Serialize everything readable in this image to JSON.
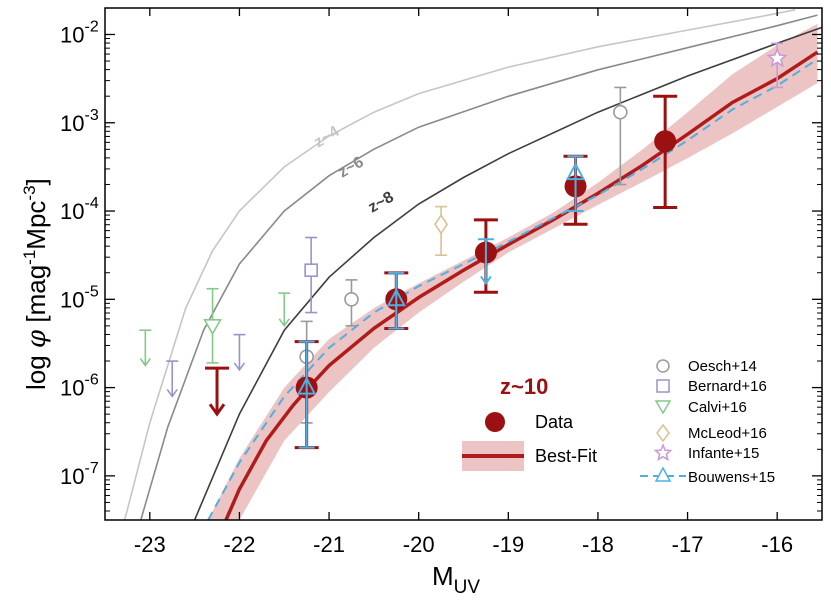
{
  "chart_data": {
    "type": "scatter",
    "title": "",
    "xlabel": "M",
    "xlabel_sub": "UV",
    "ylabel_prefix": "log ",
    "ylabel_phi": "φ",
    "ylabel_unit": "[mag",
    "ylabel_exp1": "-1",
    "ylabel_mid": "Mpc",
    "ylabel_exp2": "-3",
    "ylabel_end": "]",
    "xlim": [
      -23.5,
      -15.5
    ],
    "ylim_log10": [
      -7.5,
      -1.7
    ],
    "x_ticks": [
      -23,
      -22,
      -21,
      -20,
      -19,
      -18,
      -17,
      -16
    ],
    "y_ticks_exponent": [
      -7,
      -6,
      -5,
      -4,
      -3,
      -2
    ],
    "y_tick_base": "10",
    "colors": {
      "data": "#9b1111",
      "bestfit": "#b01c1c",
      "band": "#ecc4c4",
      "bouwens": "#4eb0e2",
      "oesch": "#9a9a9a",
      "bernard": "#9a92cc",
      "calvi": "#86c98a",
      "mcleod": "#d6c392",
      "infante": "#c99ad8",
      "z4": "#c6c6c6",
      "z6": "#8a8a8a",
      "z8": "#3e3e3e"
    },
    "reference_curves": [
      {
        "name": "z~4",
        "label": "z~4",
        "points": [
          [
            -23.28,
            -7.5
          ],
          [
            -23.0,
            -6.4
          ],
          [
            -22.6,
            -5.1
          ],
          [
            -22.3,
            -4.45
          ],
          [
            -22.0,
            -4.0
          ],
          [
            -21.5,
            -3.5
          ],
          [
            -21.0,
            -3.15
          ],
          [
            -20.5,
            -2.88
          ],
          [
            -20.0,
            -2.67
          ],
          [
            -19.0,
            -2.37
          ],
          [
            -18.0,
            -2.14
          ],
          [
            -17.0,
            -1.95
          ],
          [
            -16.2,
            -1.8
          ],
          [
            -15.8,
            -1.72
          ]
        ]
      },
      {
        "name": "z~6",
        "label": "z~6",
        "points": [
          [
            -23.1,
            -7.5
          ],
          [
            -22.8,
            -6.45
          ],
          [
            -22.4,
            -5.35
          ],
          [
            -22.0,
            -4.6
          ],
          [
            -21.5,
            -4.0
          ],
          [
            -21.0,
            -3.6
          ],
          [
            -20.5,
            -3.3
          ],
          [
            -20.0,
            -3.05
          ],
          [
            -19.0,
            -2.7
          ],
          [
            -18.0,
            -2.4
          ],
          [
            -17.0,
            -2.15
          ],
          [
            -16.0,
            -1.9
          ],
          [
            -15.55,
            -1.78
          ]
        ]
      },
      {
        "name": "z~8",
        "label": "z~8",
        "points": [
          [
            -22.5,
            -7.5
          ],
          [
            -22.0,
            -6.3
          ],
          [
            -21.5,
            -5.35
          ],
          [
            -21.0,
            -4.75
          ],
          [
            -20.5,
            -4.3
          ],
          [
            -20.0,
            -3.92
          ],
          [
            -19.5,
            -3.62
          ],
          [
            -19.0,
            -3.35
          ],
          [
            -18.0,
            -2.88
          ],
          [
            -17.0,
            -2.47
          ],
          [
            -16.0,
            -2.1
          ],
          [
            -15.5,
            -1.92
          ]
        ]
      }
    ],
    "best_fit": {
      "name": "Best-Fit",
      "points": [
        [
          -22.15,
          -7.5
        ],
        [
          -22.0,
          -7.15
        ],
        [
          -21.7,
          -6.6
        ],
        [
          -21.4,
          -6.2
        ],
        [
          -21.2,
          -5.97
        ],
        [
          -21.0,
          -5.75
        ],
        [
          -20.5,
          -5.33
        ],
        [
          -20.0,
          -4.98
        ],
        [
          -19.5,
          -4.67
        ],
        [
          -19.0,
          -4.38
        ],
        [
          -18.5,
          -4.1
        ],
        [
          -18.0,
          -3.8
        ],
        [
          -17.5,
          -3.48
        ],
        [
          -17.0,
          -3.13
        ],
        [
          -16.5,
          -2.77
        ],
        [
          -16.0,
          -2.5
        ],
        [
          -15.55,
          -2.2
        ]
      ],
      "band_upper": [
        [
          -22.35,
          -7.5
        ],
        [
          -22.0,
          -6.8
        ],
        [
          -21.5,
          -6.0
        ],
        [
          -21.0,
          -5.45
        ],
        [
          -20.5,
          -5.1
        ],
        [
          -20.0,
          -4.82
        ],
        [
          -19.5,
          -4.56
        ],
        [
          -19.0,
          -4.3
        ],
        [
          -18.5,
          -4.02
        ],
        [
          -18.0,
          -3.68
        ],
        [
          -17.5,
          -3.3
        ],
        [
          -17.0,
          -2.88
        ],
        [
          -16.5,
          -2.45
        ],
        [
          -16.0,
          -2.12
        ],
        [
          -15.55,
          -1.88
        ]
      ],
      "band_lower": [
        [
          -22.0,
          -7.5
        ],
        [
          -21.5,
          -6.6
        ],
        [
          -21.0,
          -6.05
        ],
        [
          -20.5,
          -5.55
        ],
        [
          -20.0,
          -5.15
        ],
        [
          -19.5,
          -4.8
        ],
        [
          -19.0,
          -4.47
        ],
        [
          -18.5,
          -4.2
        ],
        [
          -18.0,
          -3.93
        ],
        [
          -17.5,
          -3.67
        ],
        [
          -17.0,
          -3.4
        ],
        [
          -16.5,
          -3.12
        ],
        [
          -16.0,
          -2.82
        ],
        [
          -15.55,
          -2.55
        ]
      ]
    },
    "bouwens_curve": {
      "name": "Bouwens+15",
      "points": [
        [
          -22.35,
          -7.5
        ],
        [
          -22.0,
          -6.85
        ],
        [
          -21.5,
          -6.1
        ],
        [
          -21.0,
          -5.55
        ],
        [
          -20.5,
          -5.15
        ],
        [
          -20.0,
          -4.85
        ],
        [
          -19.5,
          -4.6
        ],
        [
          -19.0,
          -4.35
        ],
        [
          -18.5,
          -4.08
        ],
        [
          -18.0,
          -3.82
        ],
        [
          -17.5,
          -3.52
        ],
        [
          -17.0,
          -3.2
        ],
        [
          -16.5,
          -2.85
        ],
        [
          -16.0,
          -2.58
        ],
        [
          -15.55,
          -2.28
        ]
      ]
    },
    "series": [
      {
        "name": "Data",
        "marker": "filled-circle",
        "points": [
          {
            "x": -21.25,
            "y": -6.0,
            "ylo": -6.68,
            "yhi": -5.48
          },
          {
            "x": -20.25,
            "y": -5.0,
            "ylo": -5.33,
            "yhi": -4.7
          },
          {
            "x": -19.25,
            "y": -4.47,
            "ylo": -4.92,
            "yhi": -4.1
          },
          {
            "x": -18.25,
            "y": -3.72,
            "ylo": -4.15,
            "yhi": -3.38
          },
          {
            "x": -17.25,
            "y": -3.21,
            "ylo": -3.96,
            "yhi": -2.7
          }
        ]
      },
      {
        "name": "Data upper limit",
        "marker": "arrow",
        "points": [
          {
            "x": -22.25,
            "y": -5.78,
            "arrow_to": -6.3
          }
        ]
      },
      {
        "name": "Bouwens+15",
        "marker": "open-triangle",
        "points": [
          {
            "x": -21.25,
            "y": -6.0,
            "ylo": -6.68,
            "yhi": -5.48
          },
          {
            "x": -20.25,
            "y": -5.0,
            "ylo": -5.33,
            "yhi": -4.7
          },
          {
            "x": -18.25,
            "y": -3.57,
            "ylo": -4.0,
            "yhi": -3.38
          }
        ]
      },
      {
        "name": "Bouwens+15 upper limit",
        "marker": "arrow",
        "points": [
          {
            "x": -19.25,
            "y": -4.32,
            "arrow_to": -4.82
          }
        ]
      },
      {
        "name": "Oesch+14",
        "marker": "open-circle",
        "points": [
          {
            "x": -20.75,
            "y": -5.0,
            "ylo": -5.3,
            "yhi": -4.78
          },
          {
            "x": -17.75,
            "y": -2.88,
            "ylo": -3.7,
            "yhi": -2.6
          },
          {
            "x": -21.25,
            "y": -5.65,
            "ylo": -6.4,
            "yhi": -5.25
          }
        ]
      },
      {
        "name": "Bernard+16",
        "marker": "open-square",
        "points": [
          {
            "x": -21.2,
            "y": -4.67,
            "ylo": -5.15,
            "yhi": -4.3
          }
        ]
      },
      {
        "name": "Bernard+16 upper limit",
        "marker": "arrow",
        "points": [
          {
            "x": -22.75,
            "y": -5.7,
            "arrow_to": -6.1
          },
          {
            "x": -22.0,
            "y": -5.4,
            "arrow_to": -5.8
          }
        ]
      },
      {
        "name": "Calvi+16",
        "marker": "open-triangle-down",
        "points": [
          {
            "x": -22.3,
            "y": -5.3,
            "ylo": -5.72,
            "yhi": -4.88
          }
        ]
      },
      {
        "name": "Calvi+16 upper limit",
        "marker": "arrow",
        "points": [
          {
            "x": -23.05,
            "y": -5.35,
            "arrow_to": -5.75
          },
          {
            "x": -21.5,
            "y": -4.93,
            "arrow_to": -5.3
          }
        ]
      },
      {
        "name": "McLeod+16",
        "marker": "open-diamond",
        "points": [
          {
            "x": -19.75,
            "y": -4.15,
            "ylo": -4.5,
            "yhi": -3.95
          }
        ]
      },
      {
        "name": "Infante+15",
        "marker": "open-star",
        "points": [
          {
            "x": -16.0,
            "y": -2.27,
            "ylo": -2.6,
            "yhi": -2.1
          }
        ]
      }
    ],
    "annotations": {
      "z4": "z~4",
      "z6": "z~6",
      "z8": "z~8"
    },
    "legend": {
      "placement": "bottom-right",
      "title": "z~10",
      "main_entries": [
        "Data",
        "Best-Fit"
      ],
      "entries": [
        "Oesch+14",
        "Bernard+16",
        "Calvi+16",
        "McLeod+16",
        "Infante+15",
        "Bouwens+15"
      ]
    }
  }
}
